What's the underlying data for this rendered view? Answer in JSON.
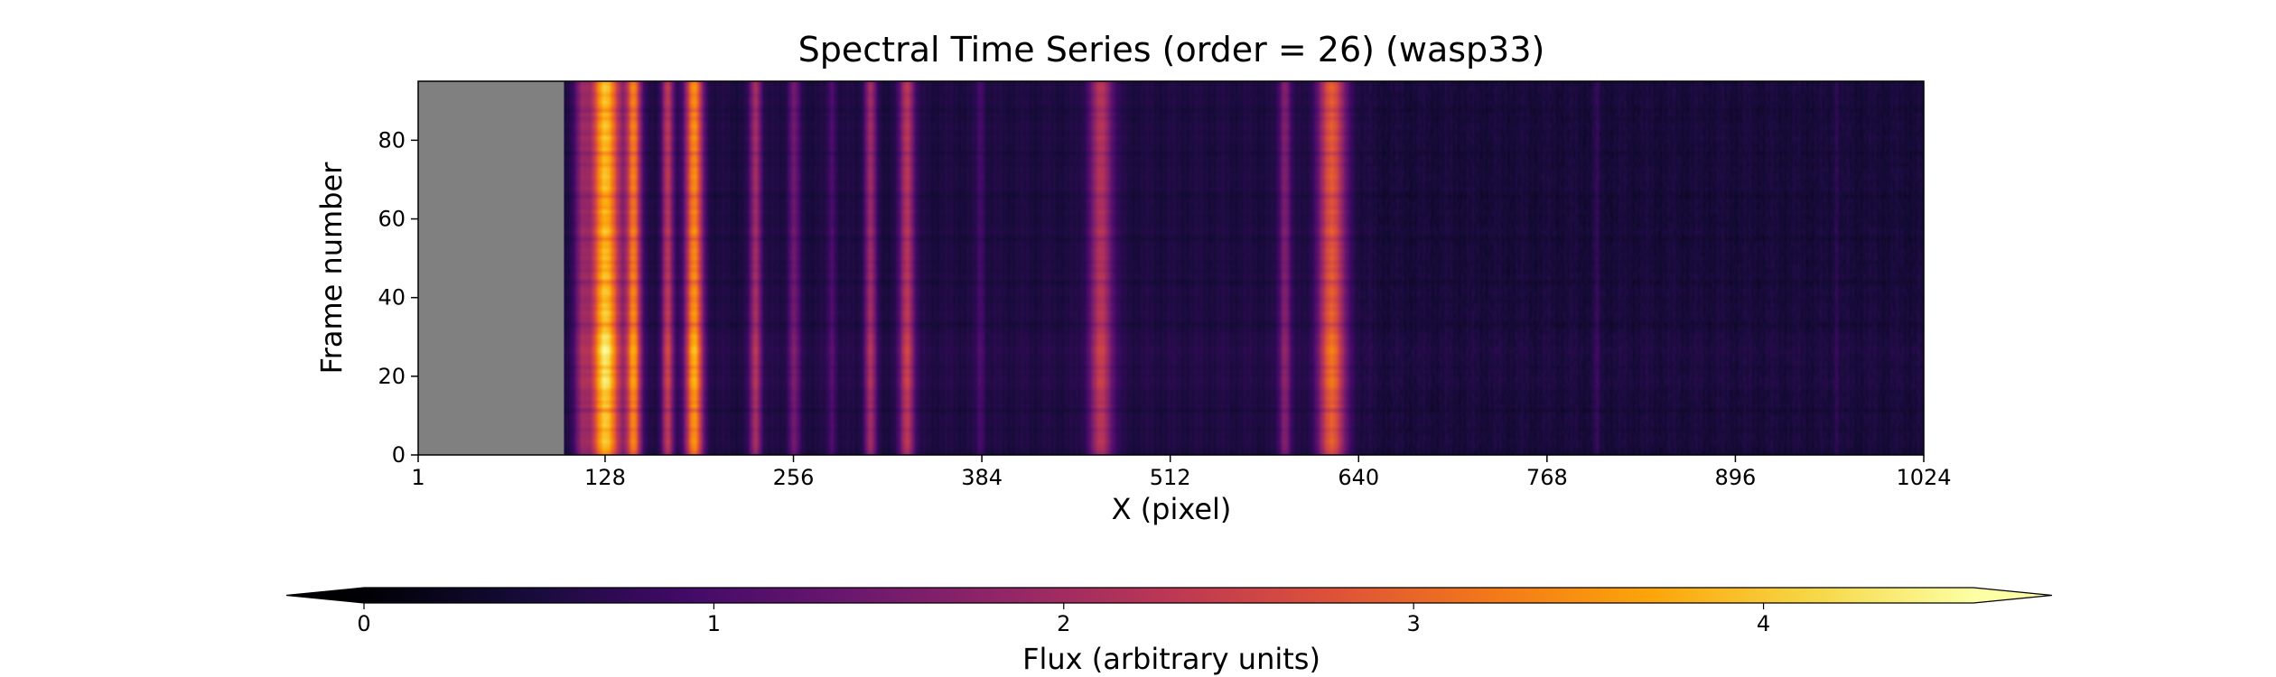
{
  "chart_data": {
    "type": "heatmap",
    "title": "Spectral Time Series (order = 26) (wasp33)",
    "xlabel": "X (pixel)",
    "ylabel": "Frame number",
    "xlim": [
      1,
      1024
    ],
    "ylim": [
      0,
      95
    ],
    "x_ticks": [
      1,
      128,
      256,
      384,
      512,
      640,
      768,
      896,
      1024
    ],
    "y_ticks": [
      0,
      20,
      40,
      60,
      80
    ],
    "grid": false,
    "colormap": "inferno",
    "masked_region": {
      "x_range": [
        1,
        100
      ],
      "color": "#808080"
    },
    "colorbar": {
      "label": "Flux (arbitrary units)",
      "range": [
        0,
        4.6
      ],
      "ticks": [
        0,
        1,
        2,
        3,
        4
      ],
      "extend": "both",
      "orientation": "horizontal",
      "placement": "bottom"
    },
    "spectral_features": [
      {
        "x_center": 112,
        "width": 10,
        "peak_flux": 1.9
      },
      {
        "x_center": 128,
        "width": 20,
        "peak_flux": 4.5
      },
      {
        "x_center": 147,
        "width": 10,
        "peak_flux": 3.7
      },
      {
        "x_center": 170,
        "width": 8,
        "peak_flux": 2.6
      },
      {
        "x_center": 188,
        "width": 12,
        "peak_flux": 3.9
      },
      {
        "x_center": 230,
        "width": 8,
        "peak_flux": 2.3
      },
      {
        "x_center": 256,
        "width": 8,
        "peak_flux": 1.6
      },
      {
        "x_center": 282,
        "width": 6,
        "peak_flux": 1.2
      },
      {
        "x_center": 308,
        "width": 8,
        "peak_flux": 2.2
      },
      {
        "x_center": 333,
        "width": 10,
        "peak_flux": 2.6
      },
      {
        "x_center": 383,
        "width": 6,
        "peak_flux": 1.1
      },
      {
        "x_center": 465,
        "width": 16,
        "peak_flux": 2.5
      },
      {
        "x_center": 590,
        "width": 8,
        "peak_flux": 1.9
      },
      {
        "x_center": 622,
        "width": 18,
        "peak_flux": 3.3
      },
      {
        "x_center": 802,
        "width": 4,
        "peak_flux": 0.9
      },
      {
        "x_center": 965,
        "width": 4,
        "peak_flux": 0.9
      }
    ]
  }
}
